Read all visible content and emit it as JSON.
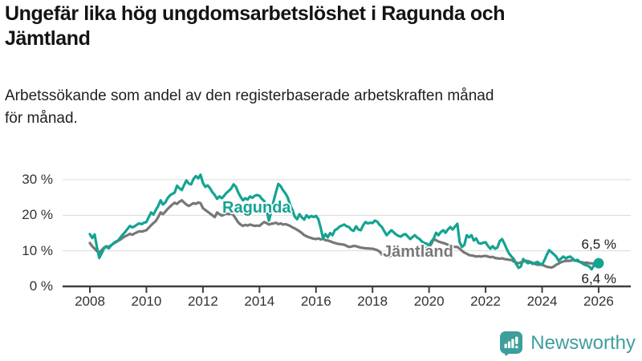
{
  "header": {
    "title_lines": [
      "Ungefär lika hög ungdomsarbetslöshet i Ragunda och",
      "Jämtland"
    ],
    "subtitle_lines": [
      "Arbetssökande som andel av den registerbaserade arbetskraften månad",
      "för månad."
    ]
  },
  "chart_data": {
    "type": "line",
    "title": "Ungefär lika hög ungdomsarbetslöshet i Ragunda och Jämtland",
    "subtitle": "Arbetssökande som andel av den registerbaserade arbetskraften månad för månad.",
    "grid": "horizontal",
    "legend_position": "inline-labels",
    "x_start_year": 2008,
    "points_per_year": 12,
    "xlim": [
      2008,
      2026.1
    ],
    "ylim": [
      0,
      33
    ],
    "y_ticks": [
      {
        "label": "0 %",
        "value": 0
      },
      {
        "label": "10 %",
        "value": 10
      },
      {
        "label": "20 %",
        "value": 20
      },
      {
        "label": "30 %",
        "value": 30
      }
    ],
    "x_ticks": [
      {
        "label": "2008",
        "value": 2008
      },
      {
        "label": "2010",
        "value": 2010
      },
      {
        "label": "2012",
        "value": 2012
      },
      {
        "label": "2014",
        "value": 2014
      },
      {
        "label": "2016",
        "value": 2016
      },
      {
        "label": "2018",
        "value": 2018
      },
      {
        "label": "2020",
        "value": 2020
      },
      {
        "label": "2022",
        "value": 2022
      },
      {
        "label": "2024",
        "value": 2024
      },
      {
        "label": "2026",
        "value": 2026
      }
    ],
    "series": [
      {
        "name": "Jämtland",
        "color": "#777777",
        "end_label": "6,4 %",
        "end_dot": false,
        "values": [
          12.2,
          11.3,
          10.6,
          9.9,
          9.5,
          10.2,
          10.9,
          11.3,
          11.1,
          11.6,
          12.0,
          12.4,
          12.8,
          13.2,
          13.7,
          14.1,
          14.4,
          14.8,
          14.5,
          14.9,
          15.2,
          15.5,
          15.4,
          15.6,
          15.8,
          16.5,
          17.2,
          17.8,
          18.4,
          19.5,
          20.8,
          20.3,
          21.0,
          21.8,
          22.4,
          23.0,
          23.5,
          23.2,
          23.8,
          24.2,
          23.6,
          23.0,
          22.6,
          23.0,
          23.4,
          23.2,
          23.6,
          23.4,
          22.0,
          21.5,
          21.0,
          20.5,
          20.0,
          19.5,
          20.8,
          20.3,
          19.9,
          20.2,
          20.5,
          20.3,
          20.5,
          20.0,
          19.0,
          18.0,
          17.4,
          17.0,
          17.3,
          17.1,
          17.4,
          17.2,
          17.0,
          17.1,
          17.0,
          17.6,
          18.1,
          17.8,
          17.4,
          17.6,
          17.7,
          17.9,
          17.5,
          17.7,
          17.4,
          17.5,
          17.3,
          17.0,
          16.6,
          16.3,
          15.9,
          15.5,
          15.0,
          14.4,
          14.1,
          13.8,
          13.6,
          13.4,
          13.3,
          13.5,
          13.2,
          13.4,
          13.0,
          12.9,
          12.7,
          12.4,
          12.2,
          12.0,
          11.9,
          11.8,
          11.7,
          11.4,
          11.1,
          11.2,
          11.4,
          11.3,
          11.1,
          10.9,
          10.8,
          10.7,
          10.7,
          10.6,
          10.6,
          10.4,
          10.2,
          9.8,
          9.0,
          8.8,
          8.5,
          8.4,
          8.7,
          9.0,
          9.1,
          9.2,
          9.2,
          9.5,
          9.8,
          9.9,
          10.0,
          10.2,
          10.1,
          10.3,
          10.4,
          10.5,
          10.7,
          10.8,
          11.0,
          12.0,
          13.3,
          13.0,
          12.6,
          12.4,
          12.2,
          12.0,
          11.7,
          11.5,
          11.3,
          11.1,
          11.1,
          10.6,
          10.0,
          9.5,
          9.2,
          8.8,
          8.7,
          8.6,
          8.4,
          8.5,
          8.4,
          8.5,
          8.6,
          8.4,
          8.2,
          8.3,
          8.0,
          7.9,
          7.8,
          7.9,
          7.7,
          7.6,
          7.5,
          7.4,
          7.0,
          6.7,
          6.5,
          6.8,
          7.0,
          7.2,
          7.1,
          6.9,
          6.6,
          6.3,
          6.1,
          6.1,
          6.1,
          5.8,
          5.5,
          5.4,
          5.3,
          5.6,
          6.1,
          6.4,
          6.8,
          7.0,
          7.2,
          7.2,
          7.2,
          7.4,
          7.3,
          7.1,
          6.9,
          6.8,
          6.6,
          6.7,
          6.5,
          6.5,
          6.4,
          6.4,
          6.4
        ]
      },
      {
        "name": "Ragunda",
        "color": "#14a392",
        "end_label": "6,5 %",
        "end_dot": true,
        "values": [
          14.7,
          13.6,
          14.6,
          11.0,
          8.0,
          9.3,
          10.7,
          11.2,
          10.7,
          11.5,
          12.1,
          12.6,
          12.9,
          13.8,
          14.6,
          15.3,
          16.2,
          17.0,
          16.6,
          16.9,
          17.4,
          17.7,
          17.5,
          17.9,
          18.1,
          19.5,
          20.8,
          20.2,
          21.5,
          22.6,
          24.2,
          23.0,
          23.6,
          24.8,
          25.6,
          26.0,
          26.4,
          28.3,
          27.6,
          27.1,
          28.5,
          29.8,
          28.9,
          28.7,
          30.2,
          31.0,
          30.4,
          31.4,
          29.1,
          28.0,
          28.4,
          27.6,
          26.5,
          25.7,
          24.6,
          25.3,
          24.8,
          25.5,
          26.3,
          26.9,
          27.5,
          28.7,
          28.0,
          26.4,
          25.2,
          24.2,
          24.8,
          24.4,
          25.3,
          24.9,
          25.5,
          25.7,
          25.5,
          24.6,
          24.0,
          21.5,
          18.5,
          21.0,
          24.0,
          26.5,
          28.8,
          28.2,
          27.0,
          26.2,
          25.0,
          23.0,
          21.5,
          19.6,
          18.9,
          20.3,
          19.4,
          18.8,
          20.0,
          19.3,
          19.8,
          19.5,
          19.8,
          18.9,
          16.5,
          13.5,
          14.7,
          13.8,
          15.0,
          14.4,
          15.8,
          16.2,
          16.8,
          17.1,
          17.4,
          16.9,
          16.7,
          15.9,
          15.6,
          16.9,
          16.0,
          15.8,
          17.2,
          18.1,
          17.7,
          17.9,
          17.8,
          18.5,
          18.2,
          17.3,
          16.7,
          15.5,
          14.4,
          15.1,
          15.8,
          15.2,
          14.6,
          14.2,
          14.0,
          14.5,
          14.7,
          14.0,
          13.3,
          13.9,
          14.4,
          13.7,
          13.3,
          12.6,
          12.2,
          12.0,
          11.5,
          12.6,
          13.5,
          15.1,
          14.4,
          15.3,
          15.8,
          15.1,
          16.0,
          16.7,
          16.0,
          16.8,
          17.6,
          12.4,
          11.1,
          11.7,
          14.4,
          13.8,
          14.4,
          12.9,
          13.5,
          12.2,
          12.0,
          12.3,
          12.4,
          11.4,
          10.6,
          11.3,
          10.6,
          10.9,
          12.7,
          13.3,
          12.0,
          10.5,
          9.2,
          8.4,
          7.7,
          6.3,
          5.2,
          5.6,
          7.7,
          7.0,
          6.5,
          6.8,
          6.3,
          6.6,
          6.9,
          6.4,
          6.1,
          7.4,
          8.9,
          10.2,
          9.6,
          9.0,
          8.4,
          7.2,
          7.8,
          8.4,
          7.9,
          8.2,
          8.4,
          7.8,
          7.2,
          7.5,
          6.9,
          6.5,
          6.1,
          5.9,
          5.6,
          4.8,
          5.9,
          6.2,
          6.5
        ]
      }
    ]
  },
  "branding": {
    "wordmark": "Newsworthy",
    "icon": "newsworthy-bar-chart-bubble-icon",
    "color": "#3e9e9b"
  }
}
